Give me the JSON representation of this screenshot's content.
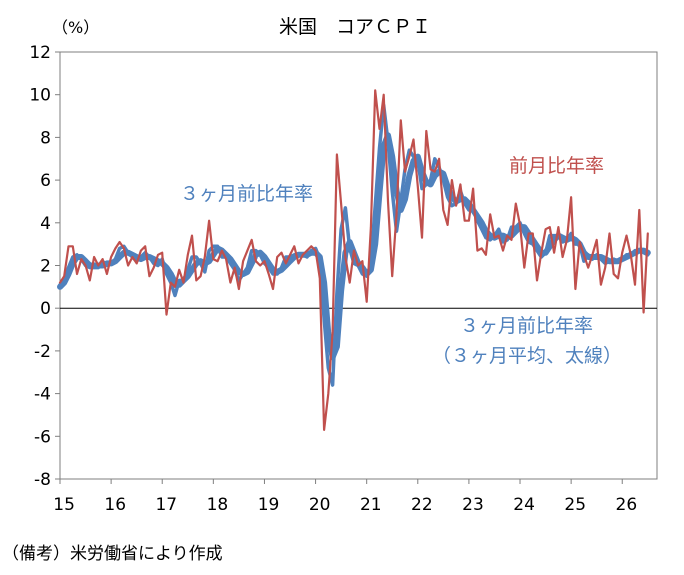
{
  "chart_data": {
    "type": "line",
    "title": "米国　コアＣＰＩ",
    "unit_label": "（%）",
    "source_note": "（備考）米労働省により作成",
    "ylim": [
      -8,
      12
    ],
    "y_ticks": [
      12,
      10,
      8,
      6,
      4,
      2,
      0,
      -2,
      -4,
      -6,
      -8
    ],
    "x_ticks": [
      "15",
      "16",
      "17",
      "18",
      "19",
      "20",
      "21",
      "22",
      "23",
      "24",
      "25",
      "26"
    ],
    "grid": false,
    "annotations": {
      "mom_label": "前月比年率",
      "three_month_label": "３ヶ月前比年率",
      "avg_label_line1": "３ヶ月前比年率",
      "avg_label_line2": "（３ヶ月平均、太線）"
    },
    "colors": {
      "mom": "#C0504D",
      "three_month": "#4F81BD",
      "axis": "#000000"
    },
    "series": [
      {
        "key": "mom",
        "name": "前月比年率",
        "x": [
          2015.0,
          2015.083,
          2015.167,
          2015.25,
          2015.333,
          2015.417,
          2015.5,
          2015.583,
          2015.667,
          2015.75,
          2015.833,
          2015.917,
          2016.0,
          2016.083,
          2016.167,
          2016.25,
          2016.333,
          2016.417,
          2016.5,
          2016.583,
          2016.667,
          2016.75,
          2016.833,
          2016.917,
          2017.0,
          2017.083,
          2017.167,
          2017.25,
          2017.333,
          2017.417,
          2017.5,
          2017.583,
          2017.667,
          2017.75,
          2017.833,
          2017.917,
          2018.0,
          2018.083,
          2018.167,
          2018.25,
          2018.333,
          2018.417,
          2018.5,
          2018.583,
          2018.667,
          2018.75,
          2018.833,
          2018.917,
          2019.0,
          2019.083,
          2019.167,
          2019.25,
          2019.333,
          2019.417,
          2019.5,
          2019.583,
          2019.667,
          2019.75,
          2019.833,
          2019.917,
          2020.0,
          2020.083,
          2020.167,
          2020.25,
          2020.333,
          2020.417,
          2020.5,
          2020.583,
          2020.667,
          2020.75,
          2020.833,
          2020.917,
          2021.0,
          2021.083,
          2021.167,
          2021.25,
          2021.333,
          2021.417,
          2021.5,
          2021.583,
          2021.667,
          2021.75,
          2021.833,
          2021.917,
          2022.0,
          2022.083,
          2022.167,
          2022.25,
          2022.333,
          2022.417,
          2022.5,
          2022.583,
          2022.667,
          2022.75,
          2022.833,
          2022.917,
          2023.0,
          2023.083,
          2023.167,
          2023.25,
          2023.333,
          2023.417,
          2023.5,
          2023.583,
          2023.667,
          2023.75,
          2023.833,
          2023.917,
          2024.0,
          2024.083,
          2024.167,
          2024.25,
          2024.333,
          2024.417,
          2024.5,
          2024.583,
          2024.667,
          2024.75,
          2024.833,
          2024.917,
          2025.0,
          2025.083,
          2025.167,
          2025.25,
          2025.333,
          2025.417,
          2025.5,
          2025.583,
          2025.667,
          2025.75,
          2025.833,
          2025.917,
          2026.0,
          2026.083,
          2026.167,
          2026.25,
          2026.333,
          2026.417,
          2026.5
        ],
        "values": [
          1.2,
          1.5,
          2.9,
          2.9,
          1.6,
          2.3,
          2.0,
          1.3,
          2.4,
          2.0,
          2.3,
          1.6,
          2.4,
          2.8,
          3.1,
          2.8,
          2.0,
          2.4,
          2.1,
          2.7,
          2.9,
          1.5,
          1.9,
          2.5,
          2.6,
          -0.3,
          1.2,
          1.0,
          1.8,
          1.2,
          2.5,
          3.4,
          1.3,
          1.5,
          2.4,
          4.1,
          2.3,
          2.2,
          2.7,
          2.3,
          1.2,
          1.9,
          0.9,
          2.2,
          2.7,
          3.2,
          2.2,
          2.0,
          2.2,
          1.6,
          0.9,
          2.4,
          2.6,
          2.1,
          2.5,
          2.9,
          2.1,
          2.5,
          2.7,
          2.9,
          2.7,
          1.4,
          -5.7,
          -4.0,
          -1.1,
          7.2,
          4.9,
          2.4,
          1.2,
          2.7,
          2.0,
          2.2,
          0.3,
          3.8,
          10.2,
          8.4,
          10.0,
          5.0,
          1.5,
          4.4,
          8.8,
          6.4,
          7.1,
          7.9,
          5.7,
          3.3,
          8.3,
          6.5,
          6.4,
          7.0,
          4.6,
          3.9,
          6.0,
          4.8,
          5.8,
          4.1,
          4.1,
          5.6,
          2.7,
          2.8,
          2.5,
          4.4,
          3.3,
          3.4,
          2.7,
          3.4,
          3.2,
          4.9,
          3.9,
          1.9,
          3.5,
          3.5,
          1.3,
          2.6,
          3.7,
          3.8,
          2.6,
          3.8,
          2.4,
          3.2,
          5.2,
          0.9,
          3.1,
          2.5,
          1.9,
          2.5,
          3.2,
          1.1,
          1.9,
          3.5,
          1.6,
          1.4,
          2.6,
          3.4,
          2.5,
          1.1,
          4.6,
          -0.2,
          3.5
        ]
      },
      {
        "key": "three_month",
        "name": "３ヶ月前比年率",
        "x": [
          2015.0,
          2015.083,
          2015.167,
          2015.25,
          2015.333,
          2015.417,
          2015.5,
          2015.583,
          2015.667,
          2015.75,
          2015.833,
          2015.917,
          2016.0,
          2016.083,
          2016.167,
          2016.25,
          2016.333,
          2016.417,
          2016.5,
          2016.583,
          2016.667,
          2016.75,
          2016.833,
          2016.917,
          2017.0,
          2017.083,
          2017.167,
          2017.25,
          2017.333,
          2017.417,
          2017.5,
          2017.583,
          2017.667,
          2017.75,
          2017.833,
          2017.917,
          2018.0,
          2018.083,
          2018.167,
          2018.25,
          2018.333,
          2018.417,
          2018.5,
          2018.583,
          2018.667,
          2018.75,
          2018.833,
          2018.917,
          2019.0,
          2019.083,
          2019.167,
          2019.25,
          2019.333,
          2019.417,
          2019.5,
          2019.583,
          2019.667,
          2019.75,
          2019.833,
          2019.917,
          2020.0,
          2020.083,
          2020.167,
          2020.25,
          2020.333,
          2020.417,
          2020.5,
          2020.583,
          2020.667,
          2020.75,
          2020.833,
          2020.917,
          2021.0,
          2021.083,
          2021.167,
          2021.25,
          2021.333,
          2021.417,
          2021.5,
          2021.583,
          2021.667,
          2021.75,
          2021.833,
          2021.917,
          2022.0,
          2022.083,
          2022.167,
          2022.25,
          2022.333,
          2022.417,
          2022.5,
          2022.583,
          2022.667,
          2022.75,
          2022.833,
          2022.917,
          2023.0,
          2023.083,
          2023.167,
          2023.25,
          2023.333,
          2023.417,
          2023.5,
          2023.583,
          2023.667,
          2023.75,
          2023.833,
          2023.917,
          2024.0,
          2024.083,
          2024.167,
          2024.25,
          2024.333,
          2024.417,
          2024.5,
          2024.583,
          2024.667,
          2024.75,
          2024.833,
          2024.917,
          2025.0,
          2025.083,
          2025.167,
          2025.25,
          2025.333,
          2025.417,
          2025.5,
          2025.583,
          2025.667,
          2025.75,
          2025.833,
          2025.917,
          2026.0,
          2026.083,
          2026.167,
          2026.25,
          2026.333,
          2026.417,
          2026.5
        ],
        "values": [
          1.1,
          1.3,
          1.9,
          2.4,
          2.5,
          2.3,
          2.0,
          1.9,
          1.9,
          1.9,
          2.2,
          2.0,
          2.1,
          2.3,
          2.8,
          2.9,
          2.6,
          2.4,
          2.2,
          2.4,
          2.6,
          2.4,
          2.1,
          2.0,
          2.3,
          1.6,
          1.2,
          0.6,
          1.3,
          1.3,
          1.8,
          2.4,
          2.4,
          2.1,
          1.7,
          2.7,
          2.9,
          2.9,
          2.4,
          2.4,
          2.1,
          1.8,
          1.3,
          1.6,
          1.9,
          2.7,
          2.7,
          2.5,
          2.1,
          1.9,
          1.6,
          1.6,
          1.9,
          2.4,
          2.4,
          2.5,
          2.5,
          2.5,
          2.4,
          2.7,
          2.8,
          2.3,
          -0.5,
          -2.8,
          -3.6,
          0.7,
          3.7,
          4.7,
          2.8,
          2.1,
          2.0,
          1.6,
          1.5,
          2.1,
          4.8,
          7.5,
          9.5,
          7.8,
          5.5,
          3.6,
          5.0,
          6.5,
          7.4,
          7.1,
          6.9,
          5.6,
          5.8,
          6.0,
          7.0,
          6.6,
          6.0,
          5.2,
          4.8,
          4.9,
          5.5,
          4.9,
          4.6,
          4.6,
          4.1,
          3.7,
          3.3,
          3.2,
          3.4,
          3.7,
          3.1,
          3.2,
          3.8,
          3.8,
          4.0,
          3.5,
          3.1,
          3.0,
          2.7,
          2.4,
          2.6,
          3.4,
          3.4,
          3.4,
          3.1,
          3.2,
          3.5,
          3.0,
          3.0,
          2.2,
          2.5,
          2.3,
          2.5,
          2.3,
          2.1,
          2.2,
          2.3,
          2.2,
          2.3,
          2.5,
          2.5,
          2.7,
          2.7,
          2.6,
          2.5
        ]
      },
      {
        "key": "avg",
        "name": "（３ヶ月平均、太線）",
        "x": [
          2015.0,
          2015.083,
          2015.167,
          2015.25,
          2015.333,
          2015.417,
          2015.5,
          2015.583,
          2015.667,
          2015.75,
          2015.833,
          2015.917,
          2016.0,
          2016.083,
          2016.167,
          2016.25,
          2016.333,
          2016.417,
          2016.5,
          2016.583,
          2016.667,
          2016.75,
          2016.833,
          2016.917,
          2017.0,
          2017.083,
          2017.167,
          2017.25,
          2017.333,
          2017.417,
          2017.5,
          2017.583,
          2017.667,
          2017.75,
          2017.833,
          2017.917,
          2018.0,
          2018.083,
          2018.167,
          2018.25,
          2018.333,
          2018.417,
          2018.5,
          2018.583,
          2018.667,
          2018.75,
          2018.833,
          2018.917,
          2019.0,
          2019.083,
          2019.167,
          2019.25,
          2019.333,
          2019.417,
          2019.5,
          2019.583,
          2019.667,
          2019.75,
          2019.833,
          2019.917,
          2020.0,
          2020.083,
          2020.167,
          2020.25,
          2020.333,
          2020.417,
          2020.5,
          2020.583,
          2020.667,
          2020.75,
          2020.833,
          2020.917,
          2021.0,
          2021.083,
          2021.167,
          2021.25,
          2021.333,
          2021.417,
          2021.5,
          2021.583,
          2021.667,
          2021.75,
          2021.833,
          2021.917,
          2022.0,
          2022.083,
          2022.167,
          2022.25,
          2022.333,
          2022.417,
          2022.5,
          2022.583,
          2022.667,
          2022.75,
          2022.833,
          2022.917,
          2023.0,
          2023.083,
          2023.167,
          2023.25,
          2023.333,
          2023.417,
          2023.5,
          2023.583,
          2023.667,
          2023.75,
          2023.833,
          2023.917,
          2024.0,
          2024.083,
          2024.167,
          2024.25,
          2024.333,
          2024.417,
          2024.5,
          2024.583,
          2024.667,
          2024.75,
          2024.833,
          2024.917,
          2025.0,
          2025.083,
          2025.167,
          2025.25,
          2025.333,
          2025.417,
          2025.5,
          2025.583,
          2025.667,
          2025.75,
          2025.833,
          2025.917,
          2026.0,
          2026.083,
          2026.167,
          2026.25,
          2026.333,
          2026.417,
          2026.5
        ],
        "values": [
          1.0,
          1.2,
          1.6,
          2.1,
          2.4,
          2.4,
          2.2,
          2.0,
          2.0,
          2.0,
          2.0,
          2.1,
          2.1,
          2.2,
          2.4,
          2.6,
          2.6,
          2.5,
          2.4,
          2.3,
          2.4,
          2.4,
          2.3,
          2.2,
          2.1,
          1.9,
          1.6,
          1.2,
          1.1,
          1.3,
          1.5,
          1.8,
          2.1,
          2.2,
          2.1,
          2.2,
          2.5,
          2.8,
          2.7,
          2.5,
          2.3,
          2.0,
          1.7,
          1.6,
          1.7,
          2.1,
          2.5,
          2.6,
          2.4,
          2.1,
          1.8,
          1.7,
          1.8,
          2.0,
          2.2,
          2.4,
          2.5,
          2.5,
          2.5,
          2.6,
          2.6,
          2.4,
          1.2,
          -1.2,
          -2.3,
          -1.8,
          0.8,
          2.6,
          3.1,
          2.6,
          2.1,
          1.9,
          1.6,
          1.8,
          3.0,
          5.4,
          7.6,
          8.1,
          7.1,
          5.5,
          4.6,
          5.1,
          6.2,
          6.9,
          7.1,
          6.4,
          5.9,
          5.8,
          6.2,
          6.4,
          6.3,
          5.7,
          5.2,
          5.0,
          5.1,
          5.1,
          4.9,
          4.6,
          4.3,
          4.0,
          3.6,
          3.4,
          3.3,
          3.4,
          3.4,
          3.3,
          3.4,
          3.6,
          3.8,
          3.8,
          3.5,
          3.2,
          2.9,
          2.6,
          2.6,
          2.9,
          3.2,
          3.4,
          3.3,
          3.2,
          3.3,
          3.2,
          3.0,
          2.6,
          2.4,
          2.4,
          2.4,
          2.4,
          2.3,
          2.2,
          2.2,
          2.2,
          2.3,
          2.4,
          2.5,
          2.6,
          2.7,
          2.7,
          2.6
        ]
      }
    ]
  }
}
